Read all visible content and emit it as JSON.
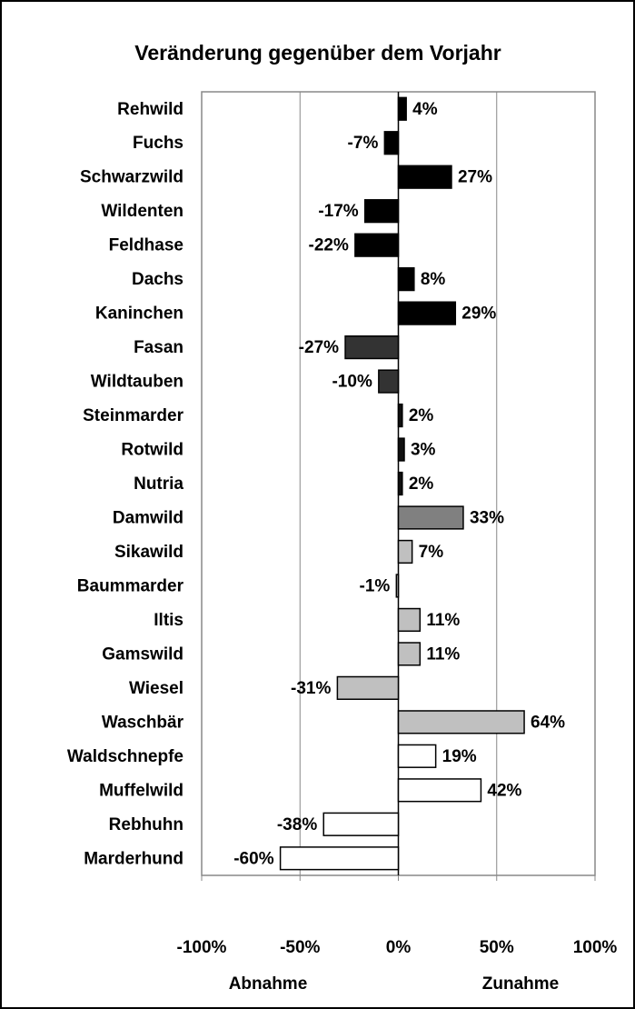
{
  "chart_data": {
    "type": "barh",
    "title": "Veränderung gegenüber dem Vorjahr",
    "categories": [
      "Rehwild",
      "Fuchs",
      "Schwarzwild",
      "Wildenten",
      "Feldhase",
      "Dachs",
      "Kaninchen",
      "Fasan",
      "Wildtauben",
      "Steinmarder",
      "Rotwild",
      "Nutria",
      "Damwild",
      "Sikawild",
      "Baummarder",
      "Iltis",
      "Gamswild",
      "Wiesel",
      "Waschbär",
      "Waldschnepfe",
      "Muffelwild",
      "Rebhuhn",
      "Marderhund"
    ],
    "values": [
      4,
      -7,
      27,
      -17,
      -22,
      8,
      29,
      -27,
      -10,
      2,
      3,
      2,
      33,
      7,
      -1,
      11,
      11,
      -31,
      64,
      19,
      42,
      -38,
      -60
    ],
    "value_labels": [
      "4%",
      "-7%",
      "27%",
      "-17%",
      "-22%",
      "8%",
      "29%",
      "-27%",
      "-10%",
      "2%",
      "3%",
      "2%",
      "33%",
      "7%",
      "-1%",
      "11%",
      "11%",
      "-31%",
      "64%",
      "19%",
      "42%",
      "-38%",
      "-60%"
    ],
    "colors": [
      "#000000",
      "#000000",
      "#000000",
      "#000000",
      "#000000",
      "#000000",
      "#000000",
      "#333333",
      "#333333",
      "#111111",
      "#111111",
      "#111111",
      "#808080",
      "#c0c0c0",
      "#c0c0c0",
      "#c0c0c0",
      "#c0c0c0",
      "#c0c0c0",
      "#c0c0c0",
      "#ffffff",
      "#ffffff",
      "#ffffff",
      "#ffffff"
    ],
    "xlim": [
      -100,
      100
    ],
    "xticks": [
      {
        "value": -100,
        "label": "-100%"
      },
      {
        "value": -50,
        "label": "-50%"
      },
      {
        "value": 0,
        "label": "0%"
      },
      {
        "value": 50,
        "label": "50%"
      },
      {
        "value": 100,
        "label": "100%"
      }
    ],
    "grid": true,
    "annotations": [
      "Abnahme",
      "Zunahme"
    ]
  }
}
